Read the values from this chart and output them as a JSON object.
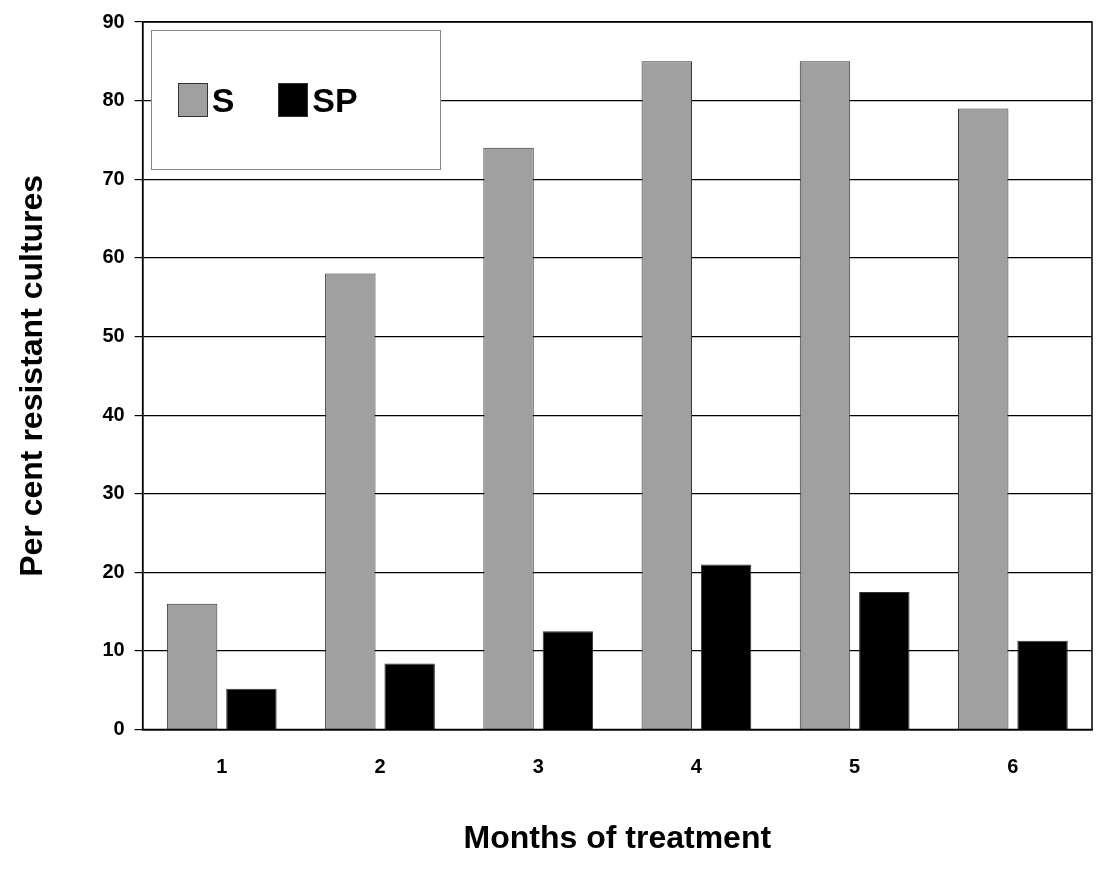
{
  "chart_data": {
    "type": "bar",
    "xlabel": "Months of treatment",
    "ylabel": "Per cent resistant cultures",
    "categories": [
      "1",
      "2",
      "3",
      "4",
      "5",
      "6"
    ],
    "series": [
      {
        "name": "S",
        "color": "#a0a0a0",
        "values": [
          16,
          58,
          74,
          85,
          85,
          79
        ]
      },
      {
        "name": "SP",
        "color": "#000000",
        "values": [
          5.2,
          8.4,
          12.5,
          21,
          17.5,
          11.3
        ]
      }
    ],
    "ylim": [
      0,
      90
    ],
    "yticks": [
      0,
      10,
      20,
      30,
      40,
      50,
      60,
      70,
      80,
      90
    ],
    "grid": "y",
    "legend": "top left"
  }
}
